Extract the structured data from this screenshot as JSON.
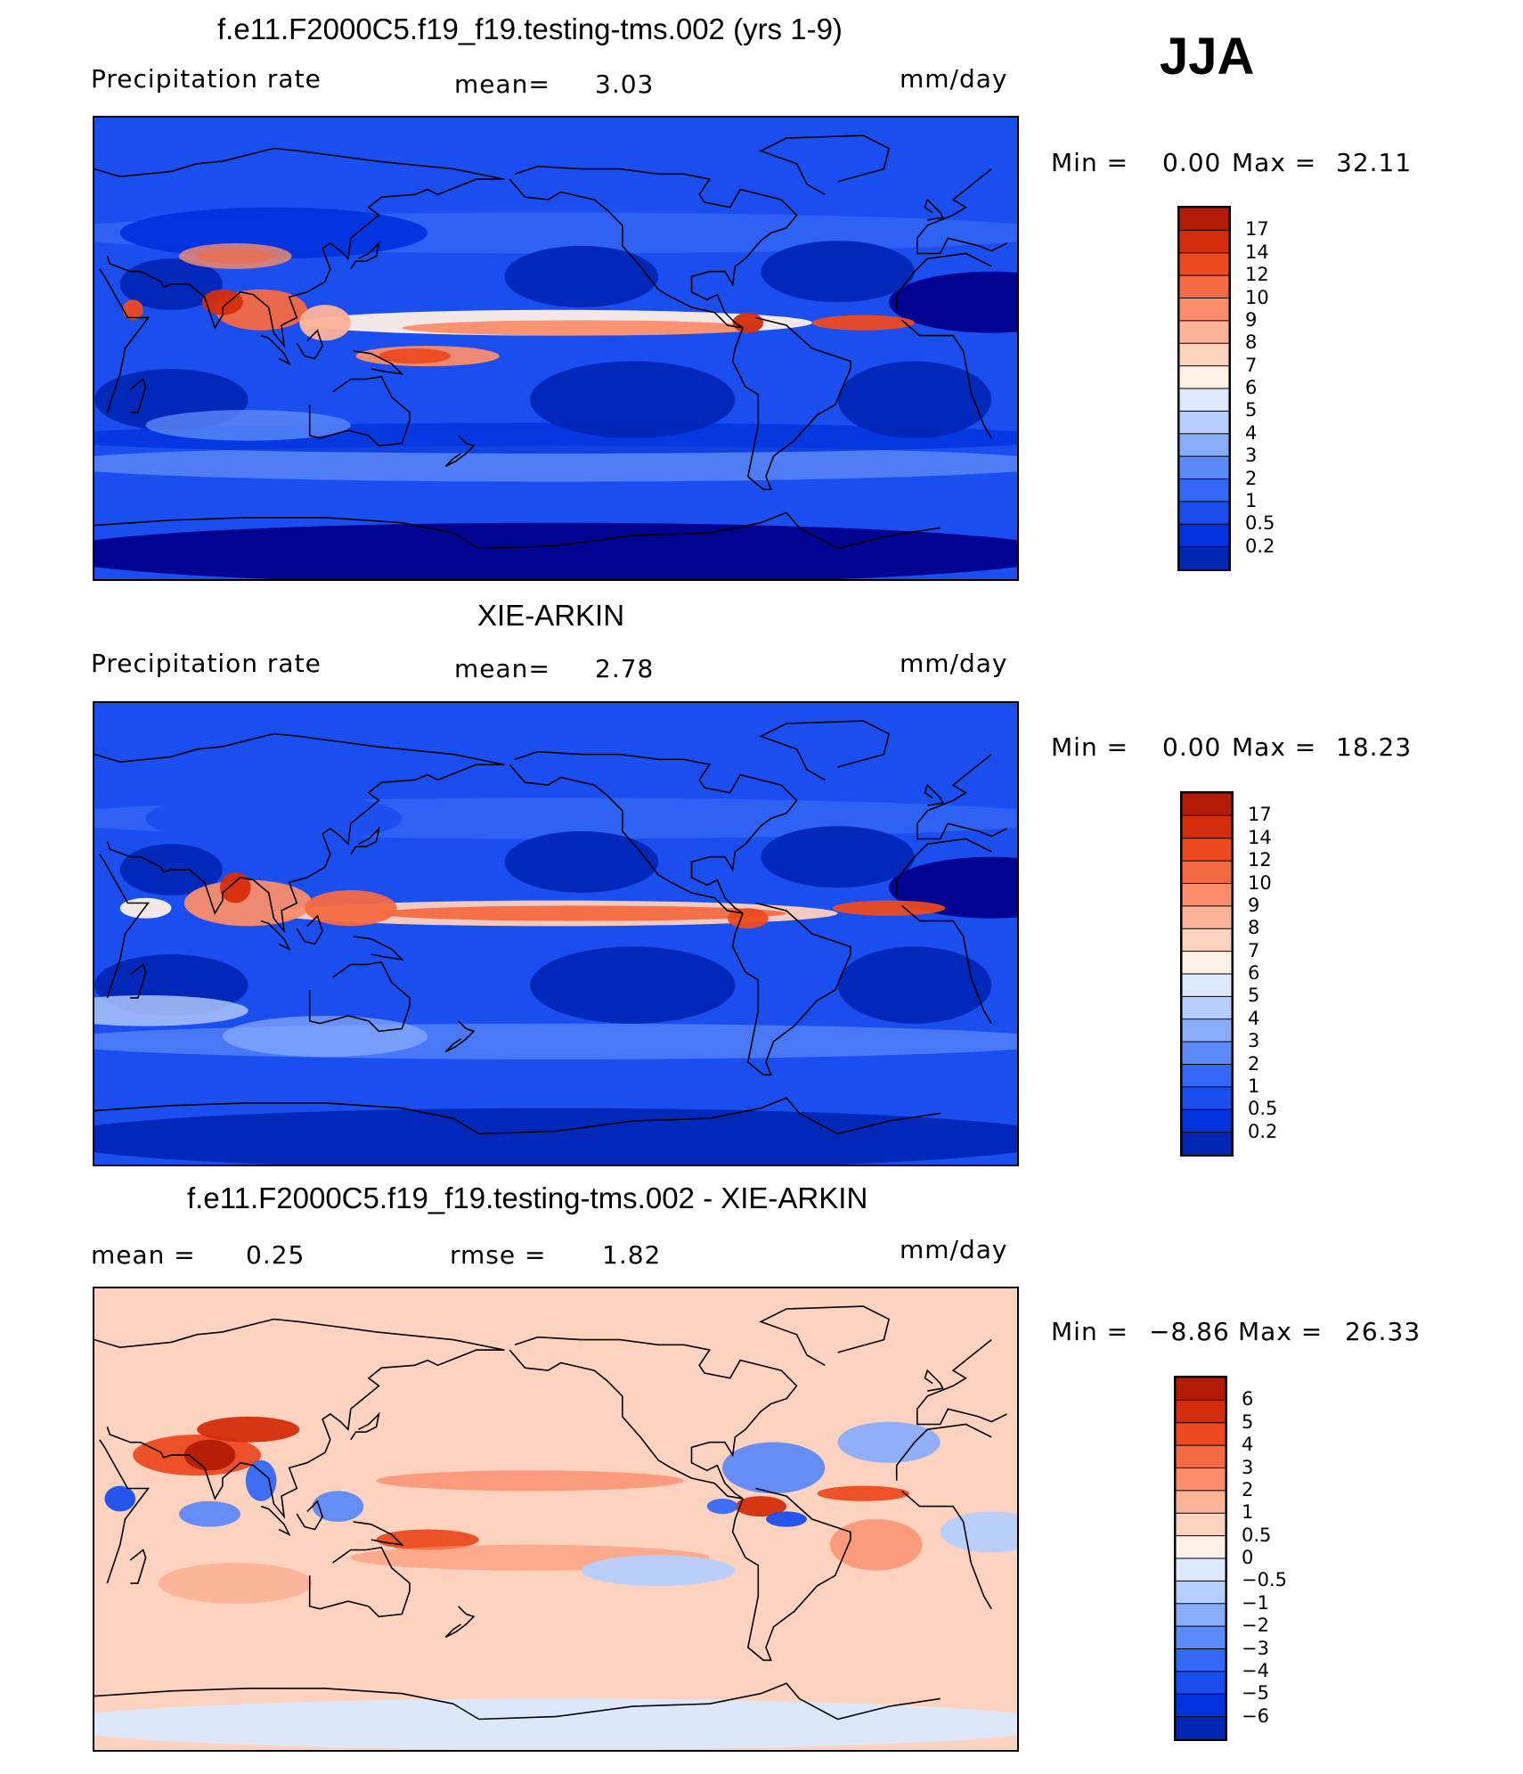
{
  "season": "JJA",
  "colors": {
    "precip_scale": [
      "#00008a",
      "#0026b4",
      "#0033dd",
      "#1a4eef",
      "#3368f5",
      "#5c8af8",
      "#8aadfb",
      "#b6cdfd",
      "#dbe8fd",
      "#fdf0e6",
      "#fdd2bf",
      "#fdb398",
      "#fb8d6a",
      "#f56a42",
      "#ec4a1f",
      "#d52d0c",
      "#b31b06",
      "#8a0c04"
    ],
    "diff_scale": [
      "#00008a",
      "#0026b4",
      "#0033dd",
      "#1a4eef",
      "#3368f5",
      "#5c8af8",
      "#8aadfb",
      "#b6cdfd",
      "#dbe8fd",
      "#fdf0e6",
      "#fdd2bf",
      "#fdb398",
      "#fb8d6a",
      "#f56a42",
      "#ec4a1f",
      "#d52d0c",
      "#b31b06",
      "#8a0c04"
    ]
  },
  "panels": [
    {
      "title": "f.e11.F2000C5.f19_f19.testing-tms.002 (yrs 1-9)",
      "left_label": "Precipitation  rate",
      "mean_label": "mean=",
      "mean_value": "3.03",
      "units": "mm/day",
      "min_label": "Min  =",
      "min_value": "0.00",
      "max_label": "Max  =",
      "max_value": "32.11",
      "colorbar_levels": [
        "17",
        "14",
        "12",
        "10",
        "9",
        "8",
        "7",
        "6",
        "5",
        "4",
        "3",
        "2",
        "1",
        "0.5",
        "0.2"
      ]
    },
    {
      "title": "XIE-ARKIN",
      "left_label": "Precipitation  rate",
      "mean_label": "mean=",
      "mean_value": "2.78",
      "units": "mm/day",
      "min_label": "Min  =",
      "min_value": "0.00",
      "max_label": "Max  =",
      "max_value": "18.23",
      "colorbar_levels": [
        "17",
        "14",
        "12",
        "10",
        "9",
        "8",
        "7",
        "6",
        "5",
        "4",
        "3",
        "2",
        "1",
        "0.5",
        "0.2"
      ]
    },
    {
      "title": "f.e11.F2000C5.f19_f19.testing-tms.002 - XIE-ARKIN",
      "left_label": "mean  =",
      "left_value": "0.25",
      "rmse_label": "rmse  =",
      "rmse_value": "1.82",
      "units": "mm/day",
      "min_label": "Min  =",
      "min_value": "−8.86",
      "max_label": "Max  =",
      "max_value": "26.33",
      "colorbar_levels": [
        "6",
        "5",
        "4",
        "3",
        "2",
        "1",
        "0.5",
        "0",
        "−0.5",
        "−1",
        "−2",
        "−3",
        "−4",
        "−5",
        "−6"
      ]
    }
  ]
}
